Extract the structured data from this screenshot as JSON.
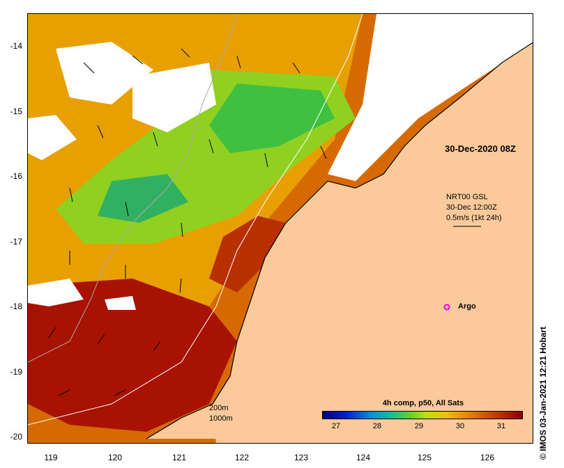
{
  "map": {
    "overlay_date": "30-Dec-2020 08Z",
    "current_product": "NRT00 GSL",
    "current_time": "30-Dec 12:00Z",
    "current_scale": "0.5m/s (1kt 24h)",
    "argo_label": "Argo",
    "credit": "© IMOS 03-Jan-2021 12:21 Hobart",
    "depth_contours": [
      "200m",
      "1000m"
    ],
    "colorbar": {
      "title": "4h comp, p50, All Sats",
      "ticks": [
        "27",
        "28",
        "29",
        "30",
        "31"
      ]
    },
    "y_ticks": [
      "-14",
      "-15",
      "-16",
      "-17",
      "-18",
      "-19",
      "-20"
    ],
    "x_ticks": [
      "119",
      "120",
      "121",
      "122",
      "123",
      "124",
      "125",
      "126"
    ]
  },
  "colors": {
    "land": "#fcc99a",
    "cloud": "#ffffff",
    "argo_marker": "#e000e0",
    "warm_sst": "#a01000",
    "mid_sst": "#e08a00",
    "cool_sst": "#50c020"
  }
}
